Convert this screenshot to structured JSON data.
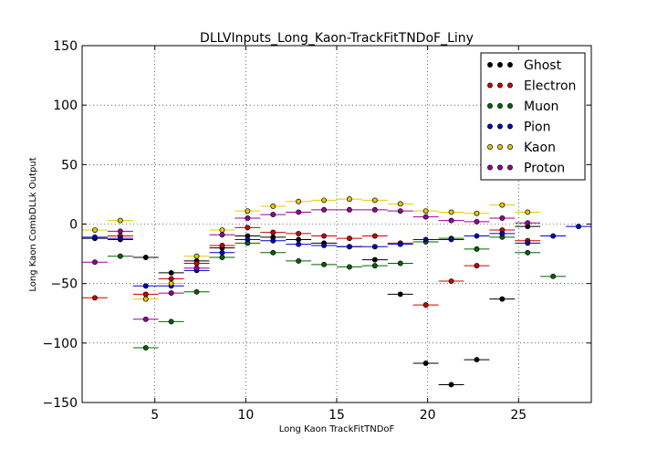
{
  "chart_data": {
    "type": "scatter",
    "title": "DLLVInputs_Long_Kaon-TrackFitTNDoF_Liny",
    "xlabel": "Long Kaon TrackFitTNDoF",
    "ylabel": "Long Kaon CombDLLk Output",
    "xlim": [
      1.0,
      29.0
    ],
    "ylim": [
      -150,
      150
    ],
    "xticks": [
      5,
      10,
      15,
      20,
      25
    ],
    "yticks": [
      -150,
      -100,
      -50,
      0,
      50,
      100,
      150
    ],
    "xtick_labels": [
      "5",
      "10",
      "15",
      "20",
      "25"
    ],
    "ytick_labels": [
      "−150",
      "−100",
      "−50",
      "0",
      "50",
      "100",
      "150"
    ],
    "grid": true,
    "legend_position": "top-right",
    "x_halfwidth": 0.7,
    "series": [
      {
        "name": "Ghost",
        "color": "#000000",
        "points": [
          [
            1.7,
            -12
          ],
          [
            3.1,
            -13
          ],
          [
            4.5,
            -28
          ],
          [
            5.9,
            -41
          ],
          [
            7.3,
            -31
          ],
          [
            8.7,
            -20
          ],
          [
            10.1,
            -10
          ],
          [
            11.5,
            -11
          ],
          [
            12.9,
            -13
          ],
          [
            14.3,
            -16
          ],
          [
            15.7,
            -19
          ],
          [
            17.1,
            -30
          ],
          [
            18.5,
            -59
          ],
          [
            19.9,
            -117
          ],
          [
            21.3,
            -135
          ],
          [
            22.7,
            -114
          ],
          [
            24.1,
            -63
          ],
          [
            25.5,
            -2
          ]
        ]
      },
      {
        "name": "Electron",
        "color": "#cc0000",
        "points": [
          [
            1.7,
            -62
          ],
          [
            3.1,
            -10
          ],
          [
            4.5,
            -59
          ],
          [
            5.9,
            -46
          ],
          [
            7.3,
            -33
          ],
          [
            8.7,
            -18
          ],
          [
            10.1,
            -3
          ],
          [
            11.5,
            -7
          ],
          [
            12.9,
            -8
          ],
          [
            14.3,
            -10
          ],
          [
            15.7,
            -12
          ],
          [
            17.1,
            -10
          ],
          [
            18.5,
            -16
          ],
          [
            19.9,
            -68
          ],
          [
            21.3,
            -48
          ],
          [
            22.7,
            -35
          ],
          [
            24.1,
            -5
          ],
          [
            25.5,
            -14
          ]
        ]
      },
      {
        "name": "Muon",
        "color": "#006600",
        "points": [
          [
            3.1,
            -27
          ],
          [
            4.5,
            -104
          ],
          [
            5.9,
            -82
          ],
          [
            7.3,
            -57
          ],
          [
            8.7,
            -28
          ],
          [
            10.1,
            -16
          ],
          [
            11.5,
            -24
          ],
          [
            12.9,
            -31
          ],
          [
            14.3,
            -34
          ],
          [
            15.7,
            -36
          ],
          [
            17.1,
            -35
          ],
          [
            18.5,
            -33
          ],
          [
            19.9,
            -15
          ],
          [
            21.3,
            -12
          ],
          [
            22.7,
            -21
          ],
          [
            24.1,
            -11
          ],
          [
            25.5,
            -24
          ],
          [
            26.9,
            -44
          ]
        ]
      },
      {
        "name": "Pion",
        "color": "#0000cc",
        "points": [
          [
            1.7,
            -11
          ],
          [
            3.1,
            -12
          ],
          [
            4.5,
            -52
          ],
          [
            5.9,
            -52
          ],
          [
            7.3,
            -39
          ],
          [
            8.7,
            -24
          ],
          [
            10.1,
            -13
          ],
          [
            11.5,
            -14
          ],
          [
            12.9,
            -17
          ],
          [
            14.3,
            -18
          ],
          [
            15.7,
            -19
          ],
          [
            17.1,
            -19
          ],
          [
            18.5,
            -17
          ],
          [
            19.9,
            -13
          ],
          [
            21.3,
            -13
          ],
          [
            22.7,
            -10
          ],
          [
            24.1,
            -8
          ],
          [
            25.5,
            -16
          ],
          [
            26.9,
            -10
          ],
          [
            28.3,
            -2
          ]
        ]
      },
      {
        "name": "Kaon",
        "color": "#e6c800",
        "points": [
          [
            1.7,
            -5
          ],
          [
            3.1,
            3
          ],
          [
            4.5,
            -63
          ],
          [
            5.9,
            -50
          ],
          [
            7.3,
            -27
          ],
          [
            8.7,
            -5
          ],
          [
            10.1,
            11
          ],
          [
            11.5,
            15
          ],
          [
            12.9,
            19
          ],
          [
            14.3,
            20
          ],
          [
            15.7,
            21
          ],
          [
            17.1,
            20
          ],
          [
            18.5,
            17
          ],
          [
            19.9,
            11
          ],
          [
            21.3,
            10
          ],
          [
            22.7,
            9
          ],
          [
            24.1,
            16
          ],
          [
            25.5,
            10
          ]
        ]
      },
      {
        "name": "Proton",
        "color": "#990099",
        "points": [
          [
            1.7,
            -32
          ],
          [
            3.1,
            -6
          ],
          [
            4.5,
            -80
          ],
          [
            5.9,
            -58
          ],
          [
            7.3,
            -37
          ],
          [
            8.7,
            -9
          ],
          [
            10.1,
            5
          ],
          [
            11.5,
            8
          ],
          [
            12.9,
            10
          ],
          [
            14.3,
            12
          ],
          [
            15.7,
            12
          ],
          [
            17.1,
            12
          ],
          [
            18.5,
            11
          ],
          [
            19.9,
            6
          ],
          [
            21.3,
            3
          ],
          [
            22.7,
            2
          ],
          [
            24.1,
            5
          ],
          [
            25.5,
            1
          ]
        ]
      }
    ]
  }
}
